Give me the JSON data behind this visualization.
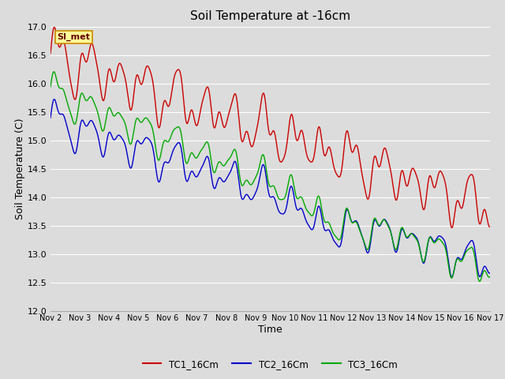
{
  "title": "Soil Temperature at -16cm",
  "xlabel": "Time",
  "ylabel": "Soil Temperature (C)",
  "ylim": [
    12.0,
    17.0
  ],
  "yticks": [
    12.0,
    12.5,
    13.0,
    13.5,
    14.0,
    14.5,
    15.0,
    15.5,
    16.0,
    16.5,
    17.0
  ],
  "background_color": "#dcdcdc",
  "plot_bg_color": "#dcdcdc",
  "grid_color": "#ffffff",
  "legend_entries": [
    "TC1_16Cm",
    "TC2_16Cm",
    "TC3_16Cm"
  ],
  "line_colors": [
    "#cc0000",
    "#0000cc",
    "#00aa00"
  ],
  "annotation_text": "SI_met",
  "annotation_bg": "#ffff99",
  "annotation_border": "#cc8800",
  "xtick_labels": [
    "Nov 2",
    "Nov 3",
    "Nov 4",
    "Nov 5",
    "Nov 6",
    "Nov 7",
    "Nov 8",
    "Nov 9",
    "Nov 10",
    "Nov 11",
    "Nov 12",
    "Nov 13",
    "Nov 14",
    "Nov 15",
    "Nov 16",
    "Nov 17"
  ]
}
